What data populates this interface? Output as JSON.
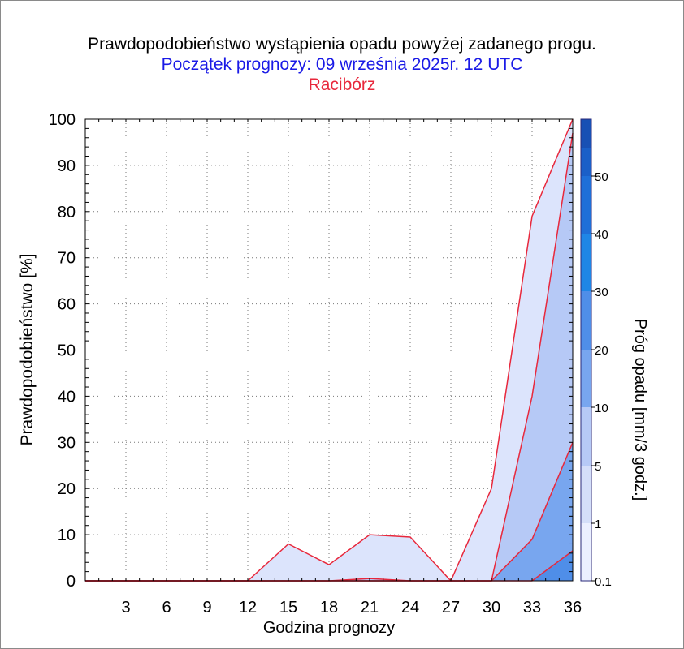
{
  "chart_data": {
    "type": "area",
    "title": "Prawdopodobieństwo wystąpienia opadu powyżej zadanego progu.",
    "subtitle": "Początek prognozy: 09 września 2025r. 12 UTC",
    "location": "Racibórz",
    "xlabel": "Godzina prognozy",
    "ylabel": "Prawdopodobieństwo [%]",
    "colorbar_label": "Próg opadu [mm/3 godz.]",
    "x": [
      0,
      3,
      6,
      9,
      12,
      15,
      18,
      21,
      24,
      27,
      30,
      33,
      36
    ],
    "xticks": [
      "3",
      "6",
      "9",
      "12",
      "15",
      "18",
      "21",
      "24",
      "27",
      "30",
      "33",
      "36"
    ],
    "yticks": [
      "0",
      "10",
      "20",
      "30",
      "40",
      "50",
      "60",
      "70",
      "80",
      "90",
      "100"
    ],
    "xlim": [
      0,
      36
    ],
    "ylim": [
      0,
      100
    ],
    "grid": "dotted",
    "series": [
      {
        "name": "0.1",
        "color": "#dce4fc",
        "values": [
          0,
          0,
          0,
          0,
          0,
          8,
          3.5,
          10,
          9.5,
          0,
          20,
          79,
          100
        ]
      },
      {
        "name": "1",
        "color": "#b6c9f6",
        "values": [
          0,
          0,
          0,
          0,
          0,
          0,
          0,
          0.5,
          0,
          0,
          0,
          40,
          97
        ]
      },
      {
        "name": "5",
        "color": "#78a6ef",
        "values": [
          0,
          0,
          0,
          0,
          0,
          0,
          0,
          0,
          0,
          0,
          0,
          9,
          30
        ]
      },
      {
        "name": "10",
        "color": "#4f8ee8",
        "values": [
          0,
          0,
          0,
          0,
          0,
          0,
          0,
          0,
          0,
          0,
          0,
          0,
          6.5
        ]
      }
    ],
    "colorbar": {
      "labels": [
        "0.1",
        "1",
        "5",
        "10",
        "20",
        "30",
        "40",
        "50"
      ],
      "colors": [
        "#ebefff",
        "#d4def9",
        "#b6c9f6",
        "#78a6ef",
        "#4f8ee8",
        "#1e86e6",
        "#1e6fd8",
        "#1a5fc8",
        "#1850b4",
        "#0c3c98"
      ]
    },
    "line_color": "#e8283c"
  }
}
